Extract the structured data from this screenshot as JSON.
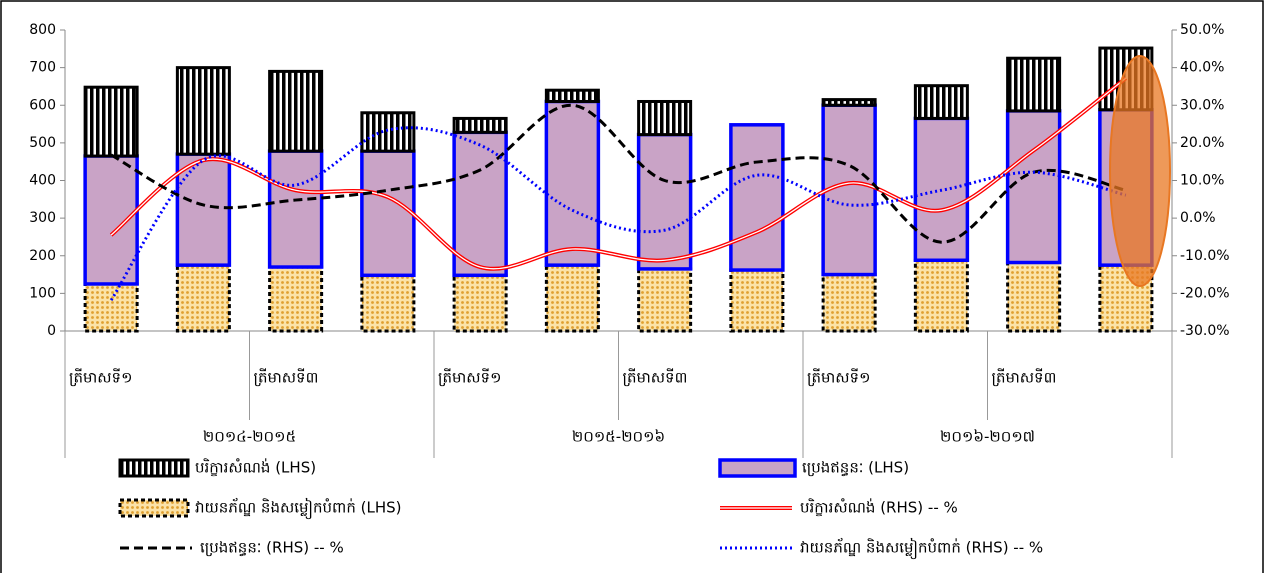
{
  "chart_data": {
    "type": "bar",
    "categories": [
      "ត្រីមាសទី១",
      null,
      "ត្រីមាសទី៣",
      null,
      "ត្រីមាសទី១",
      null,
      "ត្រីមាសទី៣",
      null,
      "ត្រីមាសទី១",
      null,
      "ត្រីមាសទី៣",
      null
    ],
    "groups": [
      "២០១៤-២០១៥",
      "២០១៥-២០១៦",
      "២០១៦-២០១៧"
    ],
    "ylim": [
      0,
      800
    ],
    "yticks": [
      0,
      100,
      200,
      300,
      400,
      500,
      600,
      700,
      800
    ],
    "y2lim": [
      -30,
      50
    ],
    "y2ticks": [
      {
        "value": -30,
        "label": "-30.0%"
      },
      {
        "value": -20,
        "label": "-20.0%"
      },
      {
        "value": -10,
        "label": "-10.0%"
      },
      {
        "value": 0,
        "label": "0.0%"
      },
      {
        "value": 10,
        "label": "10.0%"
      },
      {
        "value": 20,
        "label": "20.0%"
      },
      {
        "value": 30,
        "label": "30.0%"
      },
      {
        "value": 40,
        "label": "40.0%"
      },
      {
        "value": 50,
        "label": "50.0%"
      }
    ],
    "series": [
      {
        "name": "វាយនភ័ណ្ឌ និងសម្លៀកបំពាក់ (LHS)",
        "type": "bar",
        "color": "#f5c060",
        "values": [
          125,
          175,
          170,
          148,
          148,
          175,
          165,
          162,
          150,
          188,
          182,
          175
        ]
      },
      {
        "name": "ប្រេងឥន្ធនៈ (LHS)",
        "type": "bar",
        "color": "#c9a3c6",
        "values": [
          340,
          295,
          308,
          330,
          380,
          435,
          357,
          386,
          450,
          377,
          403,
          413
        ]
      },
      {
        "name": "បរិក្ខារសំណង់ (LHS)",
        "type": "bar",
        "color": "#000000",
        "values": [
          183,
          230,
          212,
          102,
          37,
          30,
          88,
          0,
          15,
          87,
          140,
          164
        ]
      },
      {
        "name": "បរិក្ខារសំណង់ (RHS) -- %",
        "type": "line",
        "axis": "y2",
        "color": "#ff0000",
        "values": [
          -4.5,
          15.4,
          7.4,
          5.6,
          -13,
          -8.2,
          -11.2,
          -3.7,
          9.3,
          2.1,
          18,
          37.2
        ]
      },
      {
        "name": "ប្រេងឥន្ធនៈ (RHS) -- %",
        "type": "line",
        "axis": "y2",
        "color": "#000000",
        "values": [
          16.8,
          3.5,
          4.8,
          7.4,
          12.8,
          30,
          10,
          14.9,
          14,
          -6.4,
          12.2,
          7.4
        ]
      },
      {
        "name": "វាយនភ័ណ្ឌ និងសម្លៀកបំពាក់ (RHS) -- %",
        "type": "line",
        "axis": "y2",
        "color": "#0000ff",
        "values": [
          -21.8,
          15.4,
          8.8,
          23.4,
          19.4,
          2.1,
          -3.2,
          11.4,
          3.5,
          7.4,
          12.2,
          6.1
        ]
      }
    ]
  }
}
